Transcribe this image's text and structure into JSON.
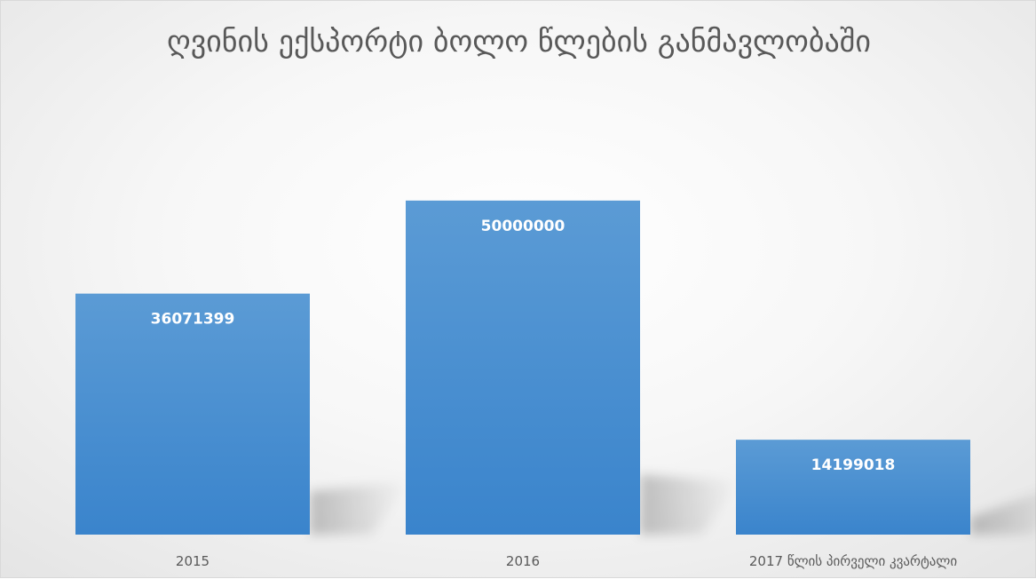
{
  "chart_data": {
    "type": "bar",
    "title": "ღვინის ექსპორტი ბოლო წლების განმავლობაში",
    "categories": [
      "2015",
      "2016",
      "2017 წლის პირველი კვარტალი"
    ],
    "values": [
      36071399,
      50000000,
      14199018
    ],
    "value_labels": [
      "36071399",
      "50000000",
      "14199018"
    ],
    "ylim": [
      0,
      65000000
    ],
    "grid": false,
    "legend": "none",
    "bar_color_top": "#5b9bd5",
    "bar_color_bottom": "#3a84cc",
    "label_color": "#ffffff"
  }
}
